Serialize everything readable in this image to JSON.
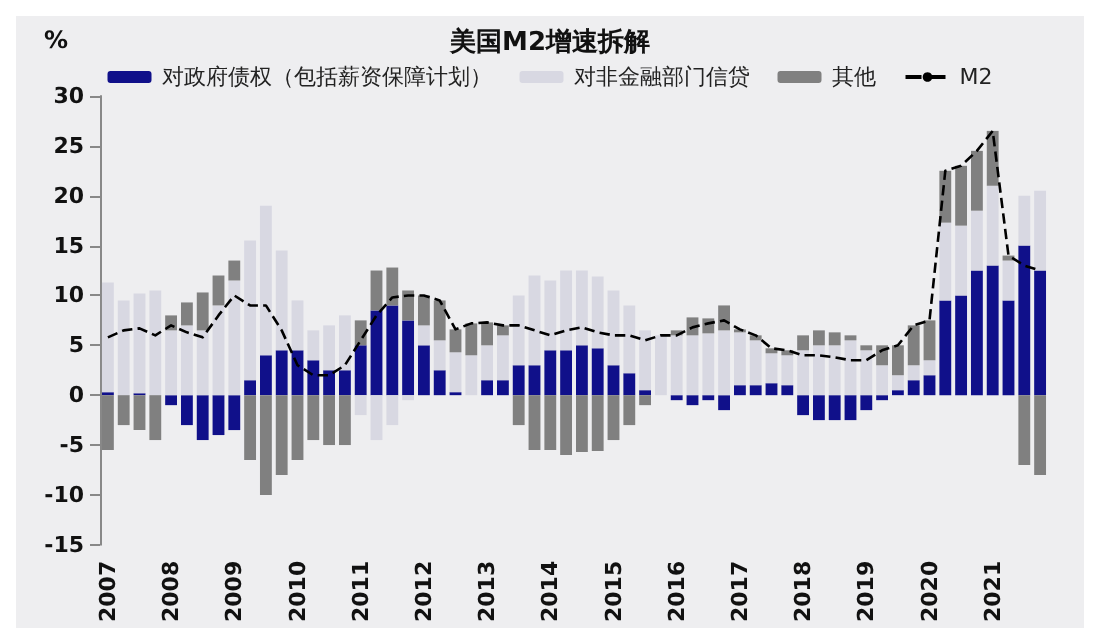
{
  "chart_data": {
    "type": "bar",
    "title": "美国M2增速拆解",
    "ylabel": "%",
    "stacked": true,
    "legend": "top",
    "grid": false,
    "categories": [
      "2007",
      null,
      null,
      null,
      "2008",
      null,
      null,
      null,
      "2009",
      null,
      null,
      null,
      "2010",
      null,
      null,
      null,
      "2011",
      null,
      null,
      null,
      "2012",
      null,
      null,
      null,
      "2013",
      null,
      null,
      null,
      "2014",
      null,
      null,
      null,
      "2015",
      null,
      null,
      null,
      "2016",
      null,
      null,
      null,
      "2017",
      null,
      null,
      null,
      "2018",
      null,
      null,
      null,
      "2019",
      null,
      null,
      null,
      "2020",
      null,
      null,
      null,
      "2021",
      null,
      null,
      null
    ],
    "ylim": [
      -15,
      30
    ],
    "yticks": [
      -15,
      -10,
      -5,
      0,
      5,
      10,
      15,
      20,
      25,
      30
    ],
    "series": [
      {
        "name": "对政府债权（包括薪资保障计划）",
        "color": "#10108a",
        "values": [
          0.3,
          0,
          0.2,
          0,
          -1,
          -3,
          -4.5,
          -4,
          -3.5,
          1.5,
          4,
          4.5,
          4.5,
          3.5,
          2.5,
          2.5,
          5,
          8.5,
          9,
          7.5,
          5,
          2.5,
          0.3,
          0,
          1.5,
          1.5,
          3,
          3,
          4.5,
          4.5,
          5,
          4.7,
          3,
          2.2,
          0.5,
          0,
          -0.5,
          -1,
          -0.5,
          -1.5,
          1,
          1,
          1.2,
          1,
          -2,
          -2.5,
          -2.5,
          -2.5,
          -1.5,
          -0.5,
          0.5,
          1.5,
          2,
          9.5,
          10,
          12.5,
          13,
          9.5,
          15,
          12.5
        ]
      },
      {
        "name": "对非金融部门信贷",
        "color": "#d8d8e2",
        "values": [
          11,
          9.5,
          10,
          10.5,
          6.5,
          7,
          6.5,
          9,
          11.5,
          14,
          15,
          10,
          5,
          3,
          4.5,
          5.5,
          -2,
          -4.5,
          -3,
          -0.5,
          2,
          3,
          4,
          4,
          3.5,
          4.5,
          7,
          9,
          7,
          8,
          7.5,
          7.2,
          7.5,
          6.8,
          6,
          6,
          6,
          6,
          6.2,
          6.5,
          5.3,
          4.5,
          3,
          3,
          4.5,
          5,
          5,
          5.5,
          4.5,
          3,
          1.5,
          1.5,
          1.5,
          7.8,
          7,
          6,
          8,
          4,
          5,
          8
        ]
      },
      {
        "name": "其他",
        "color": "#808080",
        "values": [
          -5.5,
          -3,
          -3.5,
          -4.5,
          1.5,
          2.3,
          3.8,
          3,
          2,
          -6.5,
          -10,
          -8,
          -6.5,
          -4.5,
          -5,
          -5,
          2.5,
          4,
          3.8,
          3,
          3,
          4,
          2.3,
          3.2,
          2.3,
          1,
          -3,
          -5.5,
          -5.5,
          -6,
          -5.7,
          -5.6,
          -4.5,
          -3,
          -1,
          0,
          0.5,
          1.8,
          1.5,
          2.5,
          0.3,
          0.5,
          0.5,
          0.5,
          1.5,
          1.5,
          1.3,
          0.5,
          0.5,
          2,
          3,
          4,
          4,
          5.2,
          6,
          6,
          5.5,
          0.5,
          -7,
          -8
        ]
      },
      {
        "name": "M2",
        "type": "line",
        "color": "#000000",
        "line_style": "dashed",
        "marker": "none",
        "values": [
          5.8,
          6.5,
          6.7,
          6,
          7,
          6.3,
          5.8,
          8,
          10,
          9,
          9,
          6.5,
          3,
          2,
          2,
          3,
          5.5,
          8,
          9.8,
          10,
          10,
          9.5,
          6.6,
          7.2,
          7.3,
          7,
          7,
          6.5,
          6,
          6.5,
          6.8,
          6.3,
          6,
          6,
          5.5,
          6,
          6,
          6.8,
          7.2,
          7.5,
          6.6,
          6,
          4.7,
          4.5,
          4,
          4,
          3.8,
          3.5,
          3.5,
          4.5,
          5,
          7,
          7.5,
          22.5,
          23,
          24.5,
          26.5,
          14,
          13,
          12.5
        ]
      }
    ]
  }
}
